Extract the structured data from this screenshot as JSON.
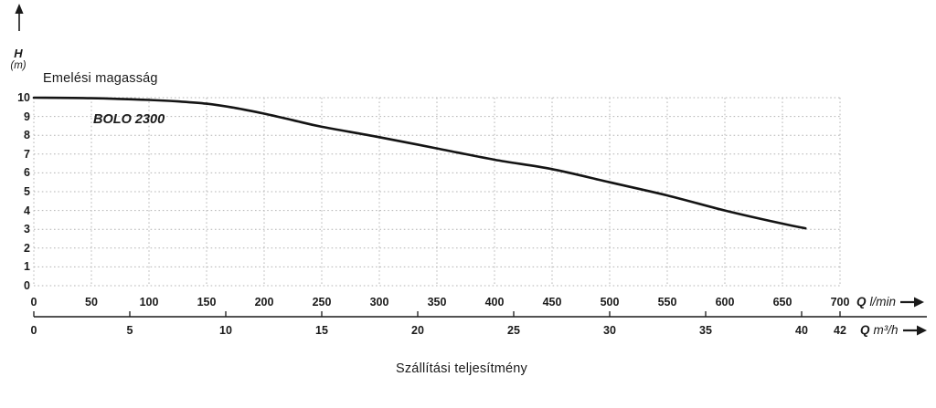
{
  "labels": {
    "y_axis_title": "Emelési magasság",
    "x_axis_title": "Szállítási teljesítmény",
    "curve_label": "BOLO 2300",
    "y_symbol": "H",
    "y_unit": "(m)",
    "x1_q": "Q",
    "x1_unit": "l/min",
    "x2_q": "Q",
    "x2_unit": "m³/h"
  },
  "colors": {
    "curve": "#141414",
    "grid": "#b4b4b4",
    "axis": "#1a1a1a",
    "text": "#1a1a1a"
  },
  "chart_data": {
    "type": "line",
    "title": "BOLO 2300",
    "xlabel": "Szállítási teljesítmény",
    "ylabel": "Emelési magasság",
    "grid": true,
    "y_axis": {
      "symbol": "H",
      "unit": "(m)",
      "range": [
        0,
        10
      ],
      "ticks": [
        0,
        1,
        2,
        3,
        4,
        5,
        6,
        7,
        8,
        9,
        10
      ]
    },
    "x_axis_primary": {
      "unit": "Q l/min",
      "range": [
        0,
        700
      ],
      "ticks": [
        0,
        50,
        100,
        150,
        200,
        250,
        300,
        350,
        400,
        450,
        500,
        550,
        600,
        650,
        700
      ]
    },
    "x_axis_secondary": {
      "unit": "Q m³/h",
      "range": [
        0,
        42
      ],
      "ticks": [
        0,
        5,
        10,
        15,
        20,
        25,
        30,
        35,
        40,
        42
      ]
    },
    "series": [
      {
        "name": "BOLO 2300",
        "x_unit": "l/min",
        "y_unit": "m",
        "points": [
          [
            0,
            10.0
          ],
          [
            50,
            9.97
          ],
          [
            100,
            9.88
          ],
          [
            125,
            9.8
          ],
          [
            150,
            9.68
          ],
          [
            175,
            9.45
          ],
          [
            200,
            9.15
          ],
          [
            225,
            8.8
          ],
          [
            250,
            8.45
          ],
          [
            300,
            7.9
          ],
          [
            350,
            7.3
          ],
          [
            400,
            6.7
          ],
          [
            450,
            6.2
          ],
          [
            500,
            5.5
          ],
          [
            550,
            4.8
          ],
          [
            600,
            4.0
          ],
          [
            650,
            3.3
          ],
          [
            670,
            3.05
          ]
        ]
      }
    ]
  }
}
